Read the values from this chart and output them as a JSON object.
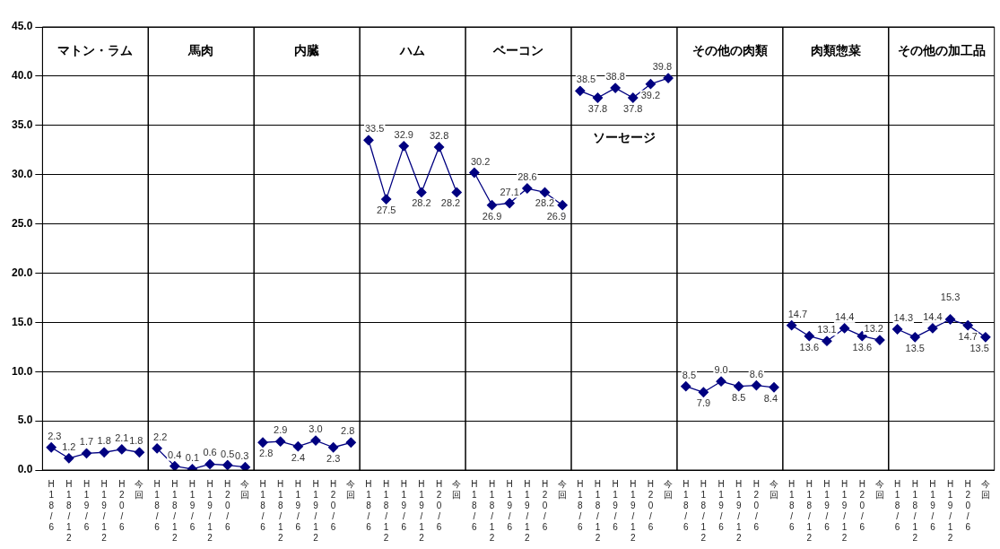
{
  "chart_data": {
    "type": "line",
    "categories": [
      "H18/6",
      "H18/12",
      "H19/6",
      "H19/12",
      "H20/6",
      "今回",
      "H18/6",
      "H18/12",
      "H19/6",
      "H19/12",
      "H20/6",
      "今回",
      "H18/6",
      "H18/12",
      "H19/6",
      "H19/12",
      "H20/6",
      "今回",
      "H18/6",
      "H18/12",
      "H19/6",
      "H19/12",
      "H20/6",
      "今回",
      "H18/6",
      "H18/12",
      "H19/6",
      "H19/12",
      "H20/6",
      "今回",
      "H18/6",
      "H18/12",
      "H19/6",
      "H19/12",
      "H20/6",
      "今回",
      "H18/6",
      "H18/12",
      "H19/6",
      "H19/12",
      "H20/6",
      "今回",
      "H18/6",
      "H18/12",
      "H19/6",
      "H19/12",
      "H20/6",
      "今回",
      "H18/6",
      "H18/12",
      "H19/6",
      "H19/12",
      "H20/6",
      "今回"
    ],
    "series": [
      {
        "color": "#000080",
        "values": [
          2.3,
          1.2,
          1.7,
          1.8,
          2.1,
          1.8,
          null,
          null,
          null,
          null,
          null,
          null,
          null,
          null,
          null,
          null,
          null,
          null,
          null,
          null,
          null,
          null,
          null,
          null,
          null,
          null,
          null,
          null,
          null,
          null,
          null,
          null,
          null,
          null,
          null,
          null,
          null,
          null,
          null,
          null,
          null,
          null,
          null,
          null,
          null,
          null,
          null,
          null,
          null,
          null,
          null,
          null,
          null,
          null
        ],
        "value_labels": [
          "2.3",
          "1.2",
          "1.7",
          "1.8",
          "2.1",
          "1.8",
          null,
          null,
          null,
          null,
          null,
          null,
          null,
          null,
          null,
          null,
          null,
          null,
          null,
          null,
          null,
          null,
          null,
          null,
          null,
          null,
          null,
          null,
          null,
          null,
          null,
          null,
          null,
          null,
          null,
          null,
          null,
          null,
          null,
          null,
          null,
          null,
          null,
          null,
          null,
          null,
          null,
          null,
          null,
          null,
          null,
          null,
          null,
          null
        ]
      },
      {
        "color": "#000080",
        "values": [
          null,
          null,
          null,
          null,
          null,
          null,
          2.2,
          0.4,
          0.1,
          0.6,
          0.5,
          0.3,
          null,
          null,
          null,
          null,
          null,
          null,
          null,
          null,
          null,
          null,
          null,
          null,
          null,
          null,
          null,
          null,
          null,
          null,
          null,
          null,
          null,
          null,
          null,
          null,
          null,
          null,
          null,
          null,
          null,
          null,
          null,
          null,
          null,
          null,
          null,
          null,
          null,
          null,
          null,
          null,
          null,
          null
        ],
        "value_labels": [
          null,
          null,
          null,
          null,
          null,
          null,
          "2.2",
          "0.4",
          "0.1",
          "0.6",
          "0.5",
          "0.3",
          null,
          null,
          null,
          null,
          null,
          null,
          null,
          null,
          null,
          null,
          null,
          null,
          null,
          null,
          null,
          null,
          null,
          null,
          null,
          null,
          null,
          null,
          null,
          null,
          null,
          null,
          null,
          null,
          null,
          null,
          null,
          null,
          null,
          null,
          null,
          null,
          null,
          null,
          null,
          null,
          null,
          null
        ]
      },
      {
        "color": "#000080",
        "values": [
          null,
          null,
          null,
          null,
          null,
          null,
          null,
          null,
          null,
          null,
          null,
          null,
          2.8,
          2.9,
          2.4,
          3.0,
          2.3,
          2.8,
          null,
          null,
          null,
          null,
          null,
          null,
          null,
          null,
          null,
          null,
          null,
          null,
          null,
          null,
          null,
          null,
          null,
          null,
          null,
          null,
          null,
          null,
          null,
          null,
          null,
          null,
          null,
          null,
          null,
          null,
          null,
          null,
          null,
          null,
          null,
          null
        ],
        "value_labels": [
          null,
          null,
          null,
          null,
          null,
          null,
          null,
          null,
          null,
          null,
          null,
          null,
          "2.8",
          "2.9",
          "2.4",
          "3.0",
          "2.3",
          "2.8",
          null,
          null,
          null,
          null,
          null,
          null,
          null,
          null,
          null,
          null,
          null,
          null,
          null,
          null,
          null,
          null,
          null,
          null,
          null,
          null,
          null,
          null,
          null,
          null,
          null,
          null,
          null,
          null,
          null,
          null,
          null,
          null,
          null,
          null,
          null,
          null
        ]
      },
      {
        "color": "#000080",
        "values": [
          null,
          null,
          null,
          null,
          null,
          null,
          null,
          null,
          null,
          null,
          null,
          null,
          null,
          null,
          null,
          null,
          null,
          null,
          33.5,
          27.5,
          32.9,
          28.2,
          32.8,
          28.2,
          null,
          null,
          null,
          null,
          null,
          null,
          null,
          null,
          null,
          null,
          null,
          null,
          null,
          null,
          null,
          null,
          null,
          null,
          null,
          null,
          null,
          null,
          null,
          null,
          null,
          null,
          null,
          null,
          null,
          null
        ],
        "value_labels": [
          null,
          null,
          null,
          null,
          null,
          null,
          null,
          null,
          null,
          null,
          null,
          null,
          null,
          null,
          null,
          null,
          null,
          null,
          "33.5",
          "27.5",
          "32.9",
          "28.2",
          "32.8",
          "28.2",
          null,
          null,
          null,
          null,
          null,
          null,
          null,
          null,
          null,
          null,
          null,
          null,
          null,
          null,
          null,
          null,
          null,
          null,
          null,
          null,
          null,
          null,
          null,
          null,
          null,
          null,
          null,
          null,
          null,
          null
        ]
      },
      {
        "color": "#000080",
        "values": [
          null,
          null,
          null,
          null,
          null,
          null,
          null,
          null,
          null,
          null,
          null,
          null,
          null,
          null,
          null,
          null,
          null,
          null,
          null,
          null,
          null,
          null,
          null,
          null,
          30.2,
          26.9,
          27.1,
          28.6,
          28.2,
          26.9,
          null,
          null,
          null,
          null,
          null,
          null,
          null,
          null,
          null,
          null,
          null,
          null,
          null,
          null,
          null,
          null,
          null,
          null,
          null,
          null,
          null,
          null,
          null,
          null
        ],
        "value_labels": [
          null,
          null,
          null,
          null,
          null,
          null,
          null,
          null,
          null,
          null,
          null,
          null,
          null,
          null,
          null,
          null,
          null,
          null,
          null,
          null,
          null,
          null,
          null,
          null,
          "30.2",
          "26.9",
          "27.1",
          "28.6",
          "28.2",
          "26.9",
          null,
          null,
          null,
          null,
          null,
          null,
          null,
          null,
          null,
          null,
          null,
          null,
          null,
          null,
          null,
          null,
          null,
          null,
          null,
          null,
          null,
          null,
          null,
          null
        ]
      },
      {
        "color": "#000080",
        "values": [
          null,
          null,
          null,
          null,
          null,
          null,
          null,
          null,
          null,
          null,
          null,
          null,
          null,
          null,
          null,
          null,
          null,
          null,
          null,
          null,
          null,
          null,
          null,
          null,
          null,
          null,
          null,
          null,
          null,
          null,
          38.5,
          37.8,
          38.8,
          37.8,
          39.2,
          39.8,
          null,
          null,
          null,
          null,
          null,
          null,
          null,
          null,
          null,
          null,
          null,
          null,
          null,
          null,
          null,
          null,
          null,
          null
        ],
        "value_labels": [
          null,
          null,
          null,
          null,
          null,
          null,
          null,
          null,
          null,
          null,
          null,
          null,
          null,
          null,
          null,
          null,
          null,
          null,
          null,
          null,
          null,
          null,
          null,
          null,
          null,
          null,
          null,
          null,
          null,
          null,
          "38.5",
          "37.8",
          "38.8",
          "37.8",
          "39.2",
          "39.8",
          null,
          null,
          null,
          null,
          null,
          null,
          null,
          null,
          null,
          null,
          null,
          null,
          null,
          null,
          null,
          null,
          null,
          null
        ]
      },
      {
        "color": "#000080",
        "values": [
          null,
          null,
          null,
          null,
          null,
          null,
          null,
          null,
          null,
          null,
          null,
          null,
          null,
          null,
          null,
          null,
          null,
          null,
          null,
          null,
          null,
          null,
          null,
          null,
          null,
          null,
          null,
          null,
          null,
          null,
          null,
          null,
          null,
          null,
          null,
          null,
          8.5,
          7.9,
          9.0,
          8.5,
          8.6,
          8.4,
          null,
          null,
          null,
          null,
          null,
          null,
          null,
          null,
          null,
          null,
          null,
          null
        ],
        "value_labels": [
          null,
          null,
          null,
          null,
          null,
          null,
          null,
          null,
          null,
          null,
          null,
          null,
          null,
          null,
          null,
          null,
          null,
          null,
          null,
          null,
          null,
          null,
          null,
          null,
          null,
          null,
          null,
          null,
          null,
          null,
          null,
          null,
          null,
          null,
          null,
          null,
          "8.5",
          "7.9",
          "9.0",
          "8.5",
          "8.6",
          "8.4",
          null,
          null,
          null,
          null,
          null,
          null,
          null,
          null,
          null,
          null,
          null,
          null
        ]
      },
      {
        "color": "#000080",
        "values": [
          null,
          null,
          null,
          null,
          null,
          null,
          null,
          null,
          null,
          null,
          null,
          null,
          null,
          null,
          null,
          null,
          null,
          null,
          null,
          null,
          null,
          null,
          null,
          null,
          null,
          null,
          null,
          null,
          null,
          null,
          null,
          null,
          null,
          null,
          null,
          null,
          null,
          null,
          null,
          null,
          null,
          null,
          14.7,
          13.6,
          13.1,
          14.4,
          13.6,
          13.2,
          null,
          null,
          null,
          null,
          null,
          null
        ],
        "value_labels": [
          null,
          null,
          null,
          null,
          null,
          null,
          null,
          null,
          null,
          null,
          null,
          null,
          null,
          null,
          null,
          null,
          null,
          null,
          null,
          null,
          null,
          null,
          null,
          null,
          null,
          null,
          null,
          null,
          null,
          null,
          null,
          null,
          null,
          null,
          null,
          null,
          null,
          null,
          null,
          null,
          null,
          null,
          "14.7",
          "13.6",
          "13.1",
          "14.4",
          "13.6",
          "13.2",
          null,
          null,
          null,
          null,
          null,
          null
        ]
      },
      {
        "color": "#000080",
        "values": [
          null,
          null,
          null,
          null,
          null,
          null,
          null,
          null,
          null,
          null,
          null,
          null,
          null,
          null,
          null,
          null,
          null,
          null,
          null,
          null,
          null,
          null,
          null,
          null,
          null,
          null,
          null,
          null,
          null,
          null,
          null,
          null,
          null,
          null,
          null,
          null,
          null,
          null,
          null,
          null,
          null,
          null,
          null,
          null,
          null,
          null,
          null,
          null,
          14.3,
          13.5,
          14.4,
          15.3,
          14.7,
          13.5
        ],
        "value_labels": [
          null,
          null,
          null,
          null,
          null,
          null,
          null,
          null,
          null,
          null,
          null,
          null,
          null,
          null,
          null,
          null,
          null,
          null,
          null,
          null,
          null,
          null,
          null,
          null,
          null,
          null,
          null,
          null,
          null,
          null,
          null,
          null,
          null,
          null,
          null,
          null,
          null,
          null,
          null,
          null,
          null,
          null,
          null,
          null,
          null,
          null,
          null,
          null,
          "14.3",
          "13.5",
          "14.4",
          "15.3",
          "14.7",
          "13.5"
        ]
      }
    ],
    "ylim": [
      0,
      45
    ],
    "yticks": [
      {
        "value": 0,
        "label": "0.0"
      },
      {
        "value": 5,
        "label": "5.0"
      },
      {
        "value": 10,
        "label": "10.0"
      },
      {
        "value": 15,
        "label": "15.0"
      },
      {
        "value": 20,
        "label": "20.0"
      },
      {
        "value": 25,
        "label": "25.0"
      },
      {
        "value": 30,
        "label": "30.0"
      },
      {
        "value": 35,
        "label": "35.0"
      },
      {
        "value": 40,
        "label": "40.0"
      },
      {
        "value": 45,
        "label": "45.0"
      }
    ],
    "annotations": [
      "マトン・ラム",
      "馬肉",
      "内臓",
      "ハム",
      "ベーコン",
      "ソーセージ",
      "その他の肉類",
      "肉類惣菜",
      "その他の加工品"
    ],
    "grid": "y",
    "marker": "diamond",
    "legend": false
  }
}
